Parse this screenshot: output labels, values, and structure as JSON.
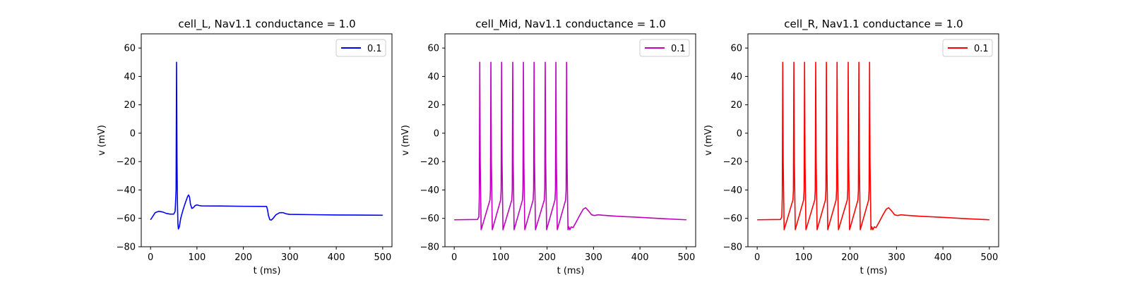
{
  "figure": {
    "background": "#ffffff"
  },
  "chart_data": [
    {
      "type": "line",
      "title": "cell_L, Nav1.1 conductance = 1.0",
      "xlabel": "t (ms)",
      "ylabel": "v (mV)",
      "xlim": [
        -20,
        520
      ],
      "ylim": [
        -80,
        70
      ],
      "xticks": [
        0,
        100,
        200,
        300,
        400,
        500
      ],
      "yticks": [
        -80,
        -60,
        -40,
        -20,
        0,
        20,
        40,
        60
      ],
      "grid": false,
      "legend_position": "top-right",
      "series": [
        {
          "name": "0.1",
          "color": "#0000ff",
          "points": [
            [
              0,
              -61
            ],
            [
              5,
              -58.5
            ],
            [
              10,
              -56
            ],
            [
              18,
              -55
            ],
            [
              26,
              -55.5
            ],
            [
              34,
              -56.5
            ],
            [
              42,
              -57
            ],
            [
              50,
              -57
            ],
            [
              53,
              -55
            ],
            [
              54,
              -48
            ],
            [
              55,
              -40
            ],
            [
              56,
              50
            ],
            [
              57,
              -20
            ],
            [
              58,
              -50
            ],
            [
              59,
              -64
            ],
            [
              60,
              -67.5
            ],
            [
              62,
              -66
            ],
            [
              65,
              -60
            ],
            [
              70,
              -54
            ],
            [
              75,
              -49
            ],
            [
              80,
              -44.5
            ],
            [
              82,
              -43.5
            ],
            [
              84,
              -45
            ],
            [
              86,
              -50
            ],
            [
              89,
              -53
            ],
            [
              92,
              -52.5
            ],
            [
              96,
              -51
            ],
            [
              100,
              -50.5
            ],
            [
              105,
              -51
            ],
            [
              110,
              -51.2
            ],
            [
              150,
              -51.3
            ],
            [
              200,
              -51.5
            ],
            [
              250,
              -51.6
            ],
            [
              252,
              -54
            ],
            [
              254,
              -58
            ],
            [
              257,
              -61
            ],
            [
              260,
              -61.2
            ],
            [
              264,
              -60
            ],
            [
              270,
              -57.5
            ],
            [
              278,
              -56
            ],
            [
              285,
              -56
            ],
            [
              292,
              -56.8
            ],
            [
              300,
              -57.2
            ],
            [
              350,
              -57.4
            ],
            [
              400,
              -57.6
            ],
            [
              450,
              -57.7
            ],
            [
              500,
              -57.8
            ]
          ]
        }
      ]
    },
    {
      "type": "line",
      "title": "cell_Mid, Nav1.1 conductance = 1.0",
      "xlabel": "t (ms)",
      "ylabel": "v (mV)",
      "xlim": [
        -20,
        520
      ],
      "ylim": [
        -80,
        70
      ],
      "xticks": [
        0,
        100,
        200,
        300,
        400,
        500
      ],
      "yticks": [
        -80,
        -60,
        -40,
        -20,
        0,
        20,
        40,
        60
      ],
      "grid": false,
      "legend_position": "top-right",
      "spikes": {
        "times": [
          55,
          79,
          102,
          126,
          149,
          172,
          196,
          219,
          242
        ],
        "peak": 50,
        "trough": -68,
        "threshold": -40
      },
      "series": [
        {
          "name": "0.1",
          "color": "#bf00bf",
          "points": [
            [
              0,
              -61
            ],
            [
              50,
              -60.8
            ],
            [
              53,
              -59
            ],
            [
              54,
              -45
            ],
            [
              55,
              50
            ],
            [
              56,
              -20
            ],
            [
              58,
              -68
            ],
            [
              77,
              -47
            ],
            [
              78,
              -40
            ],
            [
              79,
              50
            ],
            [
              80,
              -20
            ],
            [
              82,
              -68
            ],
            [
              100,
              -47
            ],
            [
              101,
              -40
            ],
            [
              102,
              50
            ],
            [
              103,
              -20
            ],
            [
              105,
              -68
            ],
            [
              124,
              -47
            ],
            [
              125,
              -40
            ],
            [
              126,
              50
            ],
            [
              127,
              -20
            ],
            [
              129,
              -68
            ],
            [
              147,
              -47
            ],
            [
              148,
              -40
            ],
            [
              149,
              50
            ],
            [
              150,
              -20
            ],
            [
              152,
              -68
            ],
            [
              170,
              -47
            ],
            [
              171,
              -40
            ],
            [
              172,
              50
            ],
            [
              173,
              -20
            ],
            [
              175,
              -68
            ],
            [
              194,
              -47
            ],
            [
              195,
              -40
            ],
            [
              196,
              50
            ],
            [
              197,
              -20
            ],
            [
              199,
              -68
            ],
            [
              217,
              -47
            ],
            [
              218,
              -40
            ],
            [
              219,
              50
            ],
            [
              220,
              -20
            ],
            [
              222,
              -68
            ],
            [
              240,
              -47
            ],
            [
              241,
              -40
            ],
            [
              242,
              50
            ],
            [
              243,
              -20
            ],
            [
              245,
              -68
            ],
            [
              247,
              -66
            ],
            [
              249,
              -68
            ],
            [
              252,
              -66
            ],
            [
              256,
              -66.5
            ],
            [
              262,
              -63
            ],
            [
              270,
              -58
            ],
            [
              278,
              -53.5
            ],
            [
              283,
              -52.5
            ],
            [
              290,
              -55
            ],
            [
              296,
              -57.5
            ],
            [
              302,
              -58
            ],
            [
              310,
              -57.5
            ],
            [
              320,
              -57.8
            ],
            [
              350,
              -58.5
            ],
            [
              400,
              -59.3
            ],
            [
              450,
              -60.2
            ],
            [
              500,
              -61
            ]
          ]
        }
      ]
    },
    {
      "type": "line",
      "title": "cell_R, Nav1.1 conductance = 1.0",
      "xlabel": "t (ms)",
      "ylabel": "v (mV)",
      "xlim": [
        -20,
        520
      ],
      "ylim": [
        -80,
        70
      ],
      "xticks": [
        0,
        100,
        200,
        300,
        400,
        500
      ],
      "yticks": [
        -80,
        -60,
        -40,
        -20,
        0,
        20,
        40,
        60
      ],
      "grid": false,
      "legend_position": "top-right",
      "spikes": {
        "times": [
          55,
          79,
          102,
          126,
          149,
          172,
          196,
          219,
          242
        ],
        "peak": 50,
        "trough": -68,
        "threshold": -40
      },
      "series": [
        {
          "name": "0.1",
          "color": "#ff0000",
          "points": [
            [
              0,
              -61
            ],
            [
              50,
              -60.8
            ],
            [
              53,
              -59
            ],
            [
              54,
              -45
            ],
            [
              55,
              50
            ],
            [
              56,
              -20
            ],
            [
              58,
              -68
            ],
            [
              77,
              -47
            ],
            [
              78,
              -40
            ],
            [
              79,
              50
            ],
            [
              80,
              -20
            ],
            [
              82,
              -68
            ],
            [
              100,
              -47
            ],
            [
              101,
              -40
            ],
            [
              102,
              50
            ],
            [
              103,
              -20
            ],
            [
              105,
              -68
            ],
            [
              124,
              -47
            ],
            [
              125,
              -40
            ],
            [
              126,
              50
            ],
            [
              127,
              -20
            ],
            [
              129,
              -68
            ],
            [
              147,
              -47
            ],
            [
              148,
              -40
            ],
            [
              149,
              50
            ],
            [
              150,
              -20
            ],
            [
              152,
              -68
            ],
            [
              170,
              -47
            ],
            [
              171,
              -40
            ],
            [
              172,
              50
            ],
            [
              173,
              -20
            ],
            [
              175,
              -68
            ],
            [
              194,
              -47
            ],
            [
              195,
              -40
            ],
            [
              196,
              50
            ],
            [
              197,
              -20
            ],
            [
              199,
              -68
            ],
            [
              217,
              -47
            ],
            [
              218,
              -40
            ],
            [
              219,
              50
            ],
            [
              220,
              -20
            ],
            [
              222,
              -68
            ],
            [
              240,
              -47
            ],
            [
              241,
              -40
            ],
            [
              242,
              50
            ],
            [
              243,
              -20
            ],
            [
              245,
              -68
            ],
            [
              247,
              -66
            ],
            [
              249,
              -68
            ],
            [
              252,
              -66
            ],
            [
              256,
              -66.5
            ],
            [
              262,
              -63
            ],
            [
              270,
              -58
            ],
            [
              278,
              -53.5
            ],
            [
              283,
              -52.5
            ],
            [
              290,
              -55
            ],
            [
              296,
              -57.5
            ],
            [
              302,
              -58
            ],
            [
              310,
              -57.5
            ],
            [
              320,
              -57.8
            ],
            [
              350,
              -58.5
            ],
            [
              400,
              -59.3
            ],
            [
              450,
              -60.2
            ],
            [
              500,
              -61
            ]
          ]
        }
      ]
    }
  ]
}
